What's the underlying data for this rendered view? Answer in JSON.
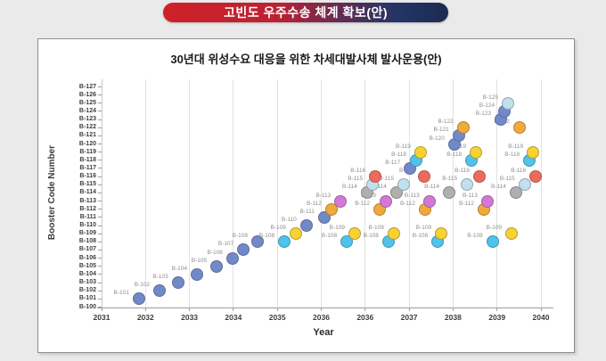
{
  "banner": {
    "title": "고빈도 우주수송 체계 확보(안)",
    "gradient_left": "#cf2127",
    "gradient_right": "#1b2b52"
  },
  "chart_data": {
    "type": "scatter",
    "title": "30년대 위성수요 대응을 위한 차세대발사체 발사운용(안)",
    "xlabel": "Year",
    "ylabel": "Booster Code Number",
    "x_unit": "tick_index",
    "x_tick_labels": [
      "2031",
      "2032",
      "2033",
      "2034",
      "2035",
      "2036",
      "2036",
      "2037",
      "2038",
      "2039",
      "2040"
    ],
    "y_tick_labels": [
      "B-100",
      "B-101",
      "B-102",
      "B-103",
      "B-104",
      "B-105",
      "B-106",
      "B-107",
      "B-108",
      "B-109",
      "B-110",
      "B-111",
      "B-112",
      "B-113",
      "B-114",
      "B-115",
      "B-116",
      "B-117",
      "B-118",
      "B-119",
      "B-120",
      "B-121",
      "B-122",
      "B-123",
      "B-124",
      "B-125",
      "B-126",
      "B-127"
    ],
    "y_range": [
      100,
      127
    ],
    "grid": "vertical-only",
    "legend": "none",
    "colors": {
      "blue": "#7289c9",
      "cyan": "#4ec3ec",
      "yellow": "#f6d233",
      "orange": "#f2a93b",
      "violet": "#d478d6",
      "gray": "#b0afb0",
      "pale": "#c2dfee",
      "red": "#ee6a5c"
    },
    "points": [
      {
        "label": "B-101",
        "code": 101,
        "x": 0.85,
        "color": "blue"
      },
      {
        "label": "B-102",
        "code": 102,
        "x": 1.32,
        "color": "blue"
      },
      {
        "label": "B-103",
        "code": 103,
        "x": 1.74,
        "color": "blue"
      },
      {
        "label": "B-104",
        "code": 104,
        "x": 2.17,
        "color": "blue"
      },
      {
        "label": "B-105",
        "code": 105,
        "x": 2.62,
        "color": "blue"
      },
      {
        "label": "B-106",
        "code": 106,
        "x": 2.98,
        "color": "blue"
      },
      {
        "label": "B-107",
        "code": 107,
        "x": 3.23,
        "color": "blue"
      },
      {
        "label": "B-108",
        "code": 108,
        "x": 3.55,
        "color": "blue"
      },
      {
        "label": "B-108",
        "code": 108,
        "x": 4.16,
        "color": "cyan"
      },
      {
        "label": "B-108",
        "code": 108,
        "x": 5.58,
        "color": "cyan"
      },
      {
        "label": "B-108",
        "code": 108,
        "x": 6.53,
        "color": "cyan"
      },
      {
        "label": "B-108",
        "code": 108,
        "x": 7.65,
        "color": "cyan"
      },
      {
        "label": "B-108",
        "code": 108,
        "x": 8.9,
        "color": "cyan"
      },
      {
        "label": "B-109",
        "code": 109,
        "x": 4.42,
        "color": "yellow"
      },
      {
        "label": "B-109",
        "code": 109,
        "x": 5.76,
        "color": "yellow"
      },
      {
        "label": "B-109",
        "code": 109,
        "x": 6.65,
        "color": "yellow"
      },
      {
        "label": "B-109",
        "code": 109,
        "x": 7.73,
        "color": "yellow"
      },
      {
        "label": "B-109",
        "code": 109,
        "x": 9.33,
        "color": "yellow"
      },
      {
        "label": "B-110",
        "code": 110,
        "x": 4.66,
        "color": "blue"
      },
      {
        "label": "B-111",
        "code": 111,
        "x": 5.07,
        "color": "blue"
      },
      {
        "label": "B-112",
        "code": 112,
        "x": 5.23,
        "color": "orange"
      },
      {
        "label": "B-112",
        "code": 112,
        "x": 6.33,
        "color": "orange"
      },
      {
        "label": "B-112",
        "code": 112,
        "x": 7.36,
        "color": "orange"
      },
      {
        "label": "B-112",
        "code": 112,
        "x": 8.7,
        "color": "orange"
      },
      {
        "label": "B-113",
        "code": 113,
        "x": 5.44,
        "color": "violet"
      },
      {
        "label": "B-113",
        "code": 113,
        "x": 6.47,
        "color": "violet"
      },
      {
        "label": "B-113",
        "code": 113,
        "x": 7.46,
        "color": "violet"
      },
      {
        "label": "B-113",
        "code": 113,
        "x": 8.78,
        "color": "violet"
      },
      {
        "label": "B-114",
        "code": 114,
        "x": 6.04,
        "color": "gray"
      },
      {
        "label": "B-114",
        "code": 114,
        "x": 6.71,
        "color": "gray"
      },
      {
        "label": "B-114",
        "code": 114,
        "x": 7.91,
        "color": "gray"
      },
      {
        "label": "B-114",
        "code": 114,
        "x": 9.43,
        "color": "gray"
      },
      {
        "label": "B-115",
        "code": 115,
        "x": 6.17,
        "color": "pale"
      },
      {
        "label": "B-115",
        "code": 115,
        "x": 6.88,
        "color": "pale"
      },
      {
        "label": "B-115",
        "code": 115,
        "x": 8.32,
        "color": "pale"
      },
      {
        "label": "B-115",
        "code": 115,
        "x": 9.63,
        "color": "pale"
      },
      {
        "label": "B-116",
        "code": 116,
        "x": 6.23,
        "color": "red"
      },
      {
        "label": "B-116",
        "code": 116,
        "x": 7.34,
        "color": "red"
      },
      {
        "label": "B-116",
        "code": 116,
        "x": 8.6,
        "color": "red"
      },
      {
        "label": "B-116",
        "code": 116,
        "x": 9.88,
        "color": "red"
      },
      {
        "label": "B-117",
        "code": 117,
        "x": 7.02,
        "color": "blue"
      },
      {
        "label": "B-118",
        "code": 118,
        "x": 7.16,
        "color": "cyan"
      },
      {
        "label": "B-118",
        "code": 118,
        "x": 8.42,
        "color": "cyan"
      },
      {
        "label": "B-118",
        "code": 118,
        "x": 9.74,
        "color": "cyan"
      },
      {
        "label": "B-119",
        "code": 119,
        "x": 7.26,
        "color": "yellow"
      },
      {
        "label": "B-119",
        "code": 119,
        "x": 8.52,
        "color": "yellow"
      },
      {
        "label": "B-119",
        "code": 119,
        "x": 9.82,
        "color": "yellow"
      },
      {
        "label": "B-120",
        "code": 120,
        "x": 8.03,
        "color": "blue"
      },
      {
        "label": "B-121",
        "code": 121,
        "x": 8.13,
        "color": "blue"
      },
      {
        "label": "B-122",
        "code": 122,
        "x": 8.23,
        "color": "orange"
      },
      {
        "label": "B-122",
        "code": 122,
        "x": 9.51,
        "color": "orange"
      },
      {
        "label": "B-123",
        "code": 123,
        "x": 9.09,
        "color": "blue"
      },
      {
        "label": "B-124",
        "code": 124,
        "x": 9.17,
        "color": "blue"
      },
      {
        "label": "B-125",
        "code": 125,
        "x": 9.25,
        "color": "pale"
      }
    ]
  }
}
